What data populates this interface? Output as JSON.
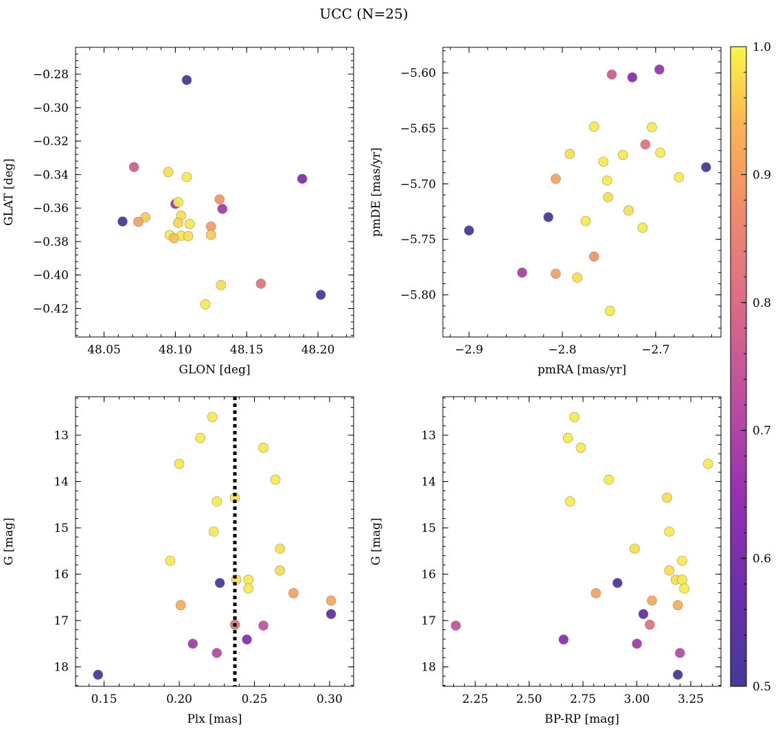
{
  "title": "UCC (N=25)",
  "colorbar": {
    "range": [
      0.5,
      1.0
    ],
    "ticks": [
      0.5,
      0.6,
      0.7,
      0.8,
      0.9,
      1.0
    ],
    "tick_labels": [
      "0.5",
      "0.6",
      "0.7",
      "0.8",
      "0.9",
      "1.0"
    ]
  },
  "chart_data": [
    {
      "type": "scatter",
      "xlabel": "GLON [deg]",
      "ylabel": "GLAT [deg]",
      "xlim": [
        48.03,
        48.225
      ],
      "ylim": [
        -0.437,
        -0.264
      ],
      "xticks": [
        48.05,
        48.1,
        48.15,
        48.2
      ],
      "xtick_labels": [
        "48.05",
        "48.10",
        "48.15",
        "48.20"
      ],
      "yticks": [
        -0.42,
        -0.4,
        -0.38,
        -0.36,
        -0.34,
        -0.32,
        -0.3,
        -0.28
      ],
      "ytick_labels": [
        "−0.42",
        "−0.40",
        "−0.38",
        "−0.36",
        "−0.34",
        "−0.32",
        "−0.30",
        "−0.28"
      ],
      "points": [
        {
          "x": 48.108,
          "y": -0.2835,
          "c": 0.52
        },
        {
          "x": 48.071,
          "y": -0.3355,
          "c": 0.77
        },
        {
          "x": 48.095,
          "y": -0.3385,
          "c": 0.98
        },
        {
          "x": 48.108,
          "y": -0.3415,
          "c": 0.99
        },
        {
          "x": 48.189,
          "y": -0.3425,
          "c": 0.62
        },
        {
          "x": 48.131,
          "y": -0.3548,
          "c": 0.89
        },
        {
          "x": 48.1,
          "y": -0.3575,
          "c": 0.68
        },
        {
          "x": 48.102,
          "y": -0.3565,
          "c": 0.99
        },
        {
          "x": 48.133,
          "y": -0.3605,
          "c": 0.68
        },
        {
          "x": 48.104,
          "y": -0.3645,
          "c": 0.98
        },
        {
          "x": 48.079,
          "y": -0.3655,
          "c": 0.96
        },
        {
          "x": 48.063,
          "y": -0.368,
          "c": 0.51
        },
        {
          "x": 48.074,
          "y": -0.3682,
          "c": 0.91
        },
        {
          "x": 48.102,
          "y": -0.3688,
          "c": 0.97
        },
        {
          "x": 48.11,
          "y": -0.3695,
          "c": 0.99
        },
        {
          "x": 48.125,
          "y": -0.371,
          "c": 0.9
        },
        {
          "x": 48.125,
          "y": -0.376,
          "c": 0.96
        },
        {
          "x": 48.096,
          "y": -0.3762,
          "c": 0.99
        },
        {
          "x": 48.104,
          "y": -0.3765,
          "c": 0.99
        },
        {
          "x": 48.109,
          "y": -0.3768,
          "c": 0.98
        },
        {
          "x": 48.16,
          "y": -0.4052,
          "c": 0.82
        },
        {
          "x": 48.132,
          "y": -0.406,
          "c": 0.98
        },
        {
          "x": 48.202,
          "y": -0.4118,
          "c": 0.51
        },
        {
          "x": 48.121,
          "y": -0.4175,
          "c": 0.99
        },
        {
          "x": 48.099,
          "y": -0.378,
          "c": 0.95
        }
      ]
    },
    {
      "type": "scatter",
      "xlabel": "pmRA [mas/yr]",
      "ylabel": "pmDE [mas/yr]",
      "xlim": [
        -2.928,
        -2.63
      ],
      "ylim": [
        -5.838,
        -5.577
      ],
      "xticks": [
        -2.9,
        -2.8,
        -2.7
      ],
      "xtick_labels": [
        "−2.9",
        "−2.8",
        "−2.7"
      ],
      "yticks": [
        -5.8,
        -5.75,
        -5.7,
        -5.65,
        -5.6
      ],
      "ytick_labels": [
        "−5.80",
        "−5.75",
        "−5.70",
        "−5.65",
        "−5.60"
      ],
      "points": [
        {
          "x": -2.696,
          "y": -5.597,
          "c": 0.66
        },
        {
          "x": -2.747,
          "y": -5.6015,
          "c": 0.77
        },
        {
          "x": -2.725,
          "y": -5.604,
          "c": 0.63
        },
        {
          "x": -2.766,
          "y": -5.6485,
          "c": 0.99
        },
        {
          "x": -2.704,
          "y": -5.649,
          "c": 0.99
        },
        {
          "x": -2.711,
          "y": -5.6645,
          "c": 0.82
        },
        {
          "x": -2.792,
          "y": -5.673,
          "c": 0.98
        },
        {
          "x": -2.735,
          "y": -5.674,
          "c": 0.99
        },
        {
          "x": -2.695,
          "y": -5.672,
          "c": 0.99
        },
        {
          "x": -2.756,
          "y": -5.68,
          "c": 0.99
        },
        {
          "x": -2.646,
          "y": -5.685,
          "c": 0.52
        },
        {
          "x": -2.675,
          "y": -5.694,
          "c": 0.99
        },
        {
          "x": -2.807,
          "y": -5.6955,
          "c": 0.91
        },
        {
          "x": -2.752,
          "y": -5.697,
          "c": 0.99
        },
        {
          "x": -2.751,
          "y": -5.712,
          "c": 0.98
        },
        {
          "x": -2.729,
          "y": -5.724,
          "c": 0.98
        },
        {
          "x": -2.815,
          "y": -5.73,
          "c": 0.51
        },
        {
          "x": -2.775,
          "y": -5.7335,
          "c": 0.99
        },
        {
          "x": -2.714,
          "y": -5.7395,
          "c": 0.99
        },
        {
          "x": -2.9,
          "y": -5.742,
          "c": 0.51
        },
        {
          "x": -2.766,
          "y": -5.7655,
          "c": 0.89
        },
        {
          "x": -2.843,
          "y": -5.78,
          "c": 0.69
        },
        {
          "x": -2.807,
          "y": -5.781,
          "c": 0.91
        },
        {
          "x": -2.784,
          "y": -5.7845,
          "c": 0.98
        },
        {
          "x": -2.749,
          "y": -5.8145,
          "c": 0.99
        }
      ]
    },
    {
      "type": "scatter",
      "xlabel": "Plx [mas]",
      "ylabel": "G [mag]",
      "xlim": [
        0.131,
        0.316
      ],
      "ylim": [
        18.42,
        12.17
      ],
      "y_inverted": true,
      "vline": 0.237,
      "xticks": [
        0.15,
        0.2,
        0.25,
        0.3
      ],
      "xtick_labels": [
        "0.15",
        "0.20",
        "0.25",
        "0.30"
      ],
      "yticks": [
        13,
        14,
        15,
        16,
        17,
        18
      ],
      "ytick_labels": [
        "13",
        "14",
        "15",
        "16",
        "17",
        "18"
      ],
      "points": [
        {
          "x": 0.222,
          "y": 12.61,
          "c": 0.99
        },
        {
          "x": 0.214,
          "y": 13.06,
          "c": 0.99
        },
        {
          "x": 0.256,
          "y": 13.27,
          "c": 0.99
        },
        {
          "x": 0.2,
          "y": 13.62,
          "c": 0.99
        },
        {
          "x": 0.264,
          "y": 13.96,
          "c": 0.99
        },
        {
          "x": 0.237,
          "y": 14.35,
          "c": 0.98
        },
        {
          "x": 0.225,
          "y": 14.43,
          "c": 0.99
        },
        {
          "x": 0.223,
          "y": 15.08,
          "c": 0.99
        },
        {
          "x": 0.267,
          "y": 15.45,
          "c": 0.98
        },
        {
          "x": 0.194,
          "y": 15.71,
          "c": 0.99
        },
        {
          "x": 0.267,
          "y": 15.92,
          "c": 0.98
        },
        {
          "x": 0.238,
          "y": 16.12,
          "c": 0.98
        },
        {
          "x": 0.246,
          "y": 16.12,
          "c": 0.99
        },
        {
          "x": 0.227,
          "y": 16.19,
          "c": 0.52
        },
        {
          "x": 0.246,
          "y": 16.31,
          "c": 0.99
        },
        {
          "x": 0.276,
          "y": 16.41,
          "c": 0.91
        },
        {
          "x": 0.301,
          "y": 16.57,
          "c": 0.92
        },
        {
          "x": 0.201,
          "y": 16.67,
          "c": 0.93
        },
        {
          "x": 0.301,
          "y": 16.86,
          "c": 0.55
        },
        {
          "x": 0.237,
          "y": 17.09,
          "c": 0.82
        },
        {
          "x": 0.256,
          "y": 17.11,
          "c": 0.74
        },
        {
          "x": 0.245,
          "y": 17.41,
          "c": 0.63
        },
        {
          "x": 0.209,
          "y": 17.5,
          "c": 0.68
        },
        {
          "x": 0.225,
          "y": 17.7,
          "c": 0.72
        },
        {
          "x": 0.146,
          "y": 18.17,
          "c": 0.51
        }
      ]
    },
    {
      "type": "scatter",
      "xlabel": "BP-RP [mag]",
      "ylabel": "G [mag]",
      "xlim": [
        2.1,
        3.39
      ],
      "ylim": [
        18.42,
        12.17
      ],
      "y_inverted": true,
      "xticks": [
        2.25,
        2.5,
        2.75,
        3.0,
        3.25
      ],
      "xtick_labels": [
        "2.25",
        "2.50",
        "2.75",
        "3.00",
        "3.25"
      ],
      "yticks": [
        13,
        14,
        15,
        16,
        17,
        18
      ],
      "ytick_labels": [
        "13",
        "14",
        "15",
        "16",
        "17",
        "18"
      ],
      "points": [
        {
          "x": 2.71,
          "y": 12.61,
          "c": 0.99
        },
        {
          "x": 2.68,
          "y": 13.06,
          "c": 0.99
        },
        {
          "x": 2.74,
          "y": 13.27,
          "c": 0.99
        },
        {
          "x": 3.33,
          "y": 13.62,
          "c": 0.99
        },
        {
          "x": 2.87,
          "y": 13.96,
          "c": 0.99
        },
        {
          "x": 3.14,
          "y": 14.35,
          "c": 0.98
        },
        {
          "x": 2.69,
          "y": 14.43,
          "c": 0.99
        },
        {
          "x": 3.15,
          "y": 15.08,
          "c": 0.99
        },
        {
          "x": 2.99,
          "y": 15.45,
          "c": 0.98
        },
        {
          "x": 3.21,
          "y": 15.71,
          "c": 0.99
        },
        {
          "x": 3.15,
          "y": 15.92,
          "c": 0.98
        },
        {
          "x": 3.18,
          "y": 16.12,
          "c": 0.98
        },
        {
          "x": 3.21,
          "y": 16.12,
          "c": 0.99
        },
        {
          "x": 2.91,
          "y": 16.19,
          "c": 0.52
        },
        {
          "x": 3.22,
          "y": 16.31,
          "c": 0.99
        },
        {
          "x": 2.81,
          "y": 16.41,
          "c": 0.91
        },
        {
          "x": 3.07,
          "y": 16.57,
          "c": 0.92
        },
        {
          "x": 3.19,
          "y": 16.67,
          "c": 0.93
        },
        {
          "x": 3.03,
          "y": 16.86,
          "c": 0.55
        },
        {
          "x": 3.06,
          "y": 17.09,
          "c": 0.82
        },
        {
          "x": 2.16,
          "y": 17.11,
          "c": 0.74
        },
        {
          "x": 2.66,
          "y": 17.41,
          "c": 0.63
        },
        {
          "x": 3.0,
          "y": 17.5,
          "c": 0.68
        },
        {
          "x": 3.2,
          "y": 17.7,
          "c": 0.72
        },
        {
          "x": 3.19,
          "y": 18.17,
          "c": 0.51
        }
      ]
    }
  ]
}
